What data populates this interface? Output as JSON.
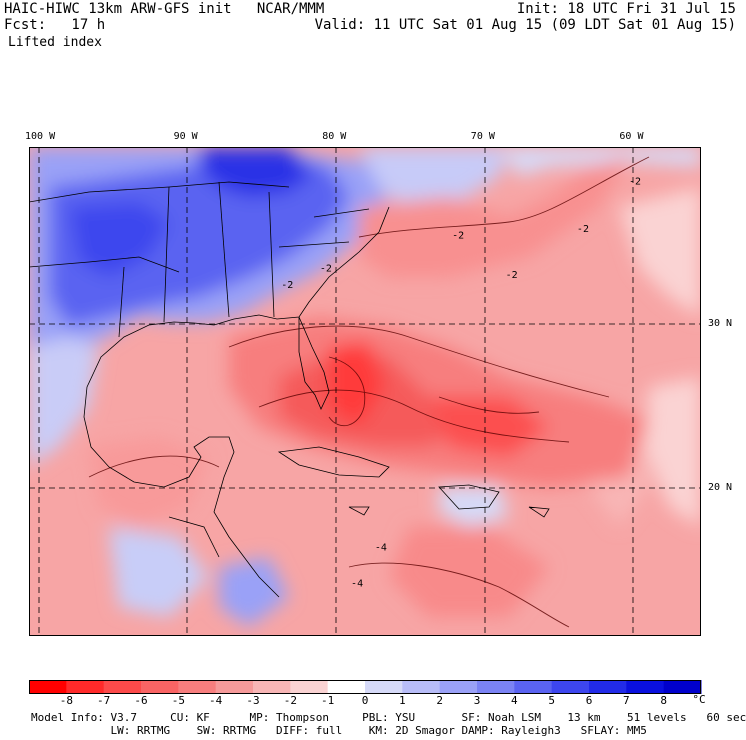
{
  "header": {
    "model_line": "HAIC-HIWC 13km ARW-GFS init   NCAR/MMM",
    "fcst_line": "Fcst:   17 h",
    "field_name": "Lifted index",
    "init_line": "Init: 18 UTC Fri 31 Jul 15",
    "valid_line": "Valid: 11 UTC Sat 01 Aug 15 (09 LDT Sat 01 Aug 15)"
  },
  "map": {
    "lon_labels": [
      {
        "text": "100 W",
        "lon": -100
      },
      {
        "text": "90 W",
        "lon": -90
      },
      {
        "text": "80 W",
        "lon": -80
      },
      {
        "text": "70 W",
        "lon": -70
      },
      {
        "text": "60 W",
        "lon": -60
      }
    ],
    "lat_labels": [
      {
        "text": "30 N",
        "lat": 30
      },
      {
        "text": "20 N",
        "lat": 20
      }
    ],
    "contour_labels": [
      {
        "text": "-2",
        "lon": -60.3,
        "lat": 38.5
      },
      {
        "text": "-2",
        "lon": -63.8,
        "lat": 35.6
      },
      {
        "text": "-2",
        "lon": -72.2,
        "lat": 35.2
      },
      {
        "text": "-2",
        "lon": -68.6,
        "lat": 32.8
      },
      {
        "text": "-2",
        "lon": -83.7,
        "lat": 32.2
      },
      {
        "text": "-2",
        "lon": -81.1,
        "lat": 33.2
      },
      {
        "text": "-4",
        "lon": -77.4,
        "lat": 16.2
      },
      {
        "text": "-4",
        "lon": -79.0,
        "lat": 14.0
      }
    ]
  },
  "colorbar": {
    "unit": "°C",
    "tick_labels": [
      "-8",
      "-7",
      "-6",
      "-5",
      "-4",
      "-3",
      "-2",
      "-1",
      "0",
      "1",
      "2",
      "3",
      "4",
      "5",
      "6",
      "7",
      "8"
    ],
    "colors": [
      "#ff0000",
      "#ff2a2a",
      "#fc4a4a",
      "#f96464",
      "#f77e7e",
      "#f69a9a",
      "#f8b6b6",
      "#fad3d3",
      "#ffffff",
      "#d6daf8",
      "#b8bdf8",
      "#9aa1f7",
      "#7b83f4",
      "#5a63f1",
      "#3d46ee",
      "#222be8",
      "#0a10de",
      "#0000cc"
    ]
  },
  "footer": {
    "line1": "Model Info: V3.7     CU: KF      MP: Thompson     PBL: YSU       SF: Noah LSM    13 km    51 levels   60 sec",
    "line2": "            LW: RRTMG    SW: RRTMG   DIFF: full    KM: 2D Smagor DAMP: Rayleigh3   SFLAY: MM5"
  }
}
